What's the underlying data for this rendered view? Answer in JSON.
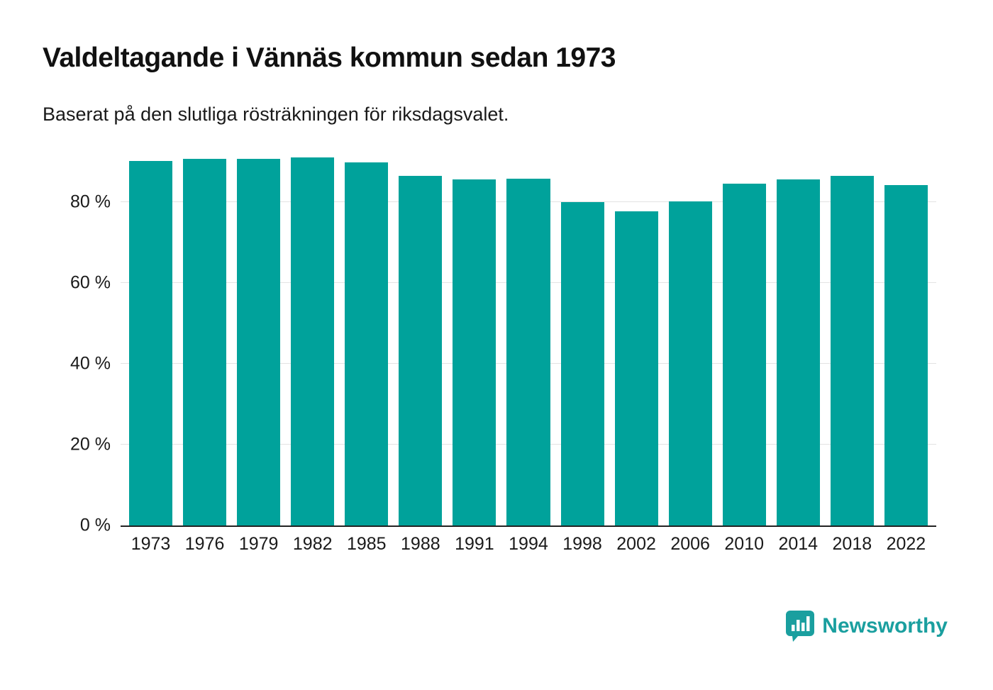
{
  "header": {
    "title": "Valdeltagande i Vännäs kommun sedan 1973",
    "subtitle": "Baserat på den slutliga rösträkningen för riksdagsvalet."
  },
  "chart_data": {
    "type": "bar",
    "title": "Valdeltagande i Vännäs kommun sedan 1973",
    "subtitle": "Baserat på den slutliga rösträkningen för riksdagsvalet.",
    "categories": [
      "1973",
      "1976",
      "1979",
      "1982",
      "1985",
      "1988",
      "1991",
      "1994",
      "1998",
      "2002",
      "2006",
      "2010",
      "2014",
      "2018",
      "2022"
    ],
    "values": [
      90.2,
      90.7,
      90.7,
      91.1,
      89.8,
      86.5,
      85.7,
      85.8,
      80.0,
      77.8,
      80.2,
      84.5,
      85.7,
      86.5,
      84.2
    ],
    "xlabel": "",
    "ylabel": "",
    "ylim": [
      0,
      91.6
    ],
    "yticks": [
      0,
      20,
      40,
      60,
      80
    ],
    "ytick_labels": [
      "0 %",
      "20 %",
      "40 %",
      "60 %",
      "80 %"
    ],
    "grid": true,
    "legend": "none",
    "bar_color": "#00a29b"
  },
  "footer": {
    "brand": "Newsworthy",
    "brand_color": "#1a9f9f"
  }
}
